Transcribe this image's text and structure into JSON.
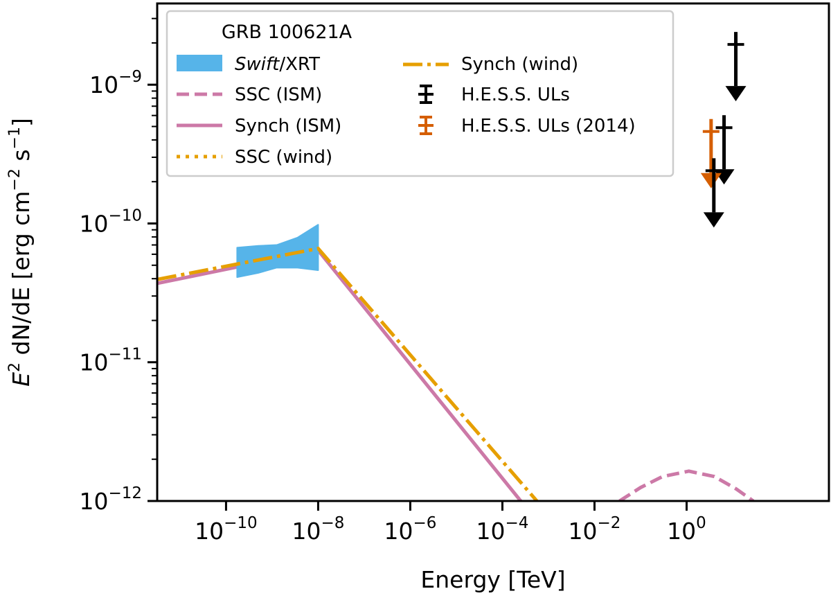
{
  "chart_data": {
    "type": "line",
    "xlabel": "Energy [TeV]",
    "ylabel": {
      "pre": "E",
      "sup": "2",
      "mid": " dN/dE [erg cm",
      "sup2": "−2",
      "mid2": " s",
      "sup3": "−1",
      "end": "]"
    },
    "xscale": "log",
    "yscale": "log",
    "xlim": [
      3.2e-12,
      1230
    ],
    "ylim": [
      1e-12,
      3.85e-09
    ],
    "grid": false,
    "x_ticks": [
      {
        "value": 1e-10,
        "base": "10",
        "exp": "−10"
      },
      {
        "value": 1e-08,
        "base": "10",
        "exp": "−8"
      },
      {
        "value": 1e-06,
        "base": "10",
        "exp": "−6"
      },
      {
        "value": 0.0001,
        "base": "10",
        "exp": "−4"
      },
      {
        "value": 0.01,
        "base": "10",
        "exp": "−2"
      },
      {
        "value": 1,
        "base": "10",
        "exp": "0"
      }
    ],
    "y_ticks": [
      {
        "value": 1e-12,
        "base": "10",
        "exp": "−12"
      },
      {
        "value": 1e-11,
        "base": "10",
        "exp": "−11"
      },
      {
        "value": 1e-10,
        "base": "10",
        "exp": "−10"
      },
      {
        "value": 1e-09,
        "base": "10",
        "exp": "−9"
      }
    ],
    "legend": {
      "title": "GRB 100621A",
      "placement": "top-left",
      "entries": [
        {
          "key": "xrt",
          "label_italic": "Swift",
          "label": "/XRT"
        },
        {
          "key": "ssc_ism",
          "label": "SSC (ISM)"
        },
        {
          "key": "synch_ism",
          "label": "Synch (ISM)"
        },
        {
          "key": "ssc_wind",
          "label": "SSC (wind)"
        },
        {
          "key": "synch_wind",
          "label": "Synch (wind)"
        },
        {
          "key": "hess",
          "label": "H.E.S.S. ULs"
        },
        {
          "key": "hess2014",
          "label": "H.E.S.S. ULs (2014)"
        }
      ]
    },
    "colors": {
      "xrt": "#56b4e9",
      "ism": "#cc79a7",
      "wind": "#e69f00",
      "hess": "#000000",
      "hess2014": "#d55e00"
    },
    "series": [
      {
        "key": "synch_ism",
        "style": "solid",
        "color": "#cc79a7",
        "x": [
          3.2e-12,
          1e-08,
          0.00025
        ],
        "y": [
          3.7e-11,
          6.4e-11,
          1e-12
        ]
      },
      {
        "key": "synch_wind",
        "style": "dashdot",
        "color": "#e69f00",
        "x": [
          3.2e-12,
          1e-08,
          0.00056
        ],
        "y": [
          3.95e-11,
          6.6e-11,
          1e-12
        ]
      },
      {
        "key": "ssc_ism",
        "style": "dashed",
        "color": "#cc79a7",
        "x": [
          0.035,
          0.1,
          0.3,
          1.12,
          4,
          12,
          28
        ],
        "y": [
          1e-12,
          1.25e-12,
          1.5e-12,
          1.64e-12,
          1.5e-12,
          1.22e-12,
          1e-12
        ]
      },
      {
        "key": "ssc_wind",
        "style": "dotted",
        "color": "#e69f00",
        "x": [],
        "y": []
      }
    ],
    "xrt_bowtie": {
      "x": [
        1.74e-10,
        5e-10,
        1.26e-09,
        3.55e-09,
        1e-08
      ],
      "upper": [
        6.7e-11,
        6.9e-11,
        7e-11,
        7.9e-11,
        9.8e-11
      ],
      "lower": [
        4.1e-11,
        4.4e-11,
        4.8e-11,
        4.8e-11,
        4.6e-11
      ]
    },
    "upper_limits": [
      {
        "set": "hess",
        "x": 11.7,
        "y": 1.95e-09
      },
      {
        "set": "hess",
        "x": 6.5,
        "y": 4.9e-10
      },
      {
        "set": "hess2014",
        "x": 3.4,
        "y": 4.6e-10
      },
      {
        "set": "hess",
        "x": 3.9,
        "y": 2.4e-10
      }
    ]
  }
}
